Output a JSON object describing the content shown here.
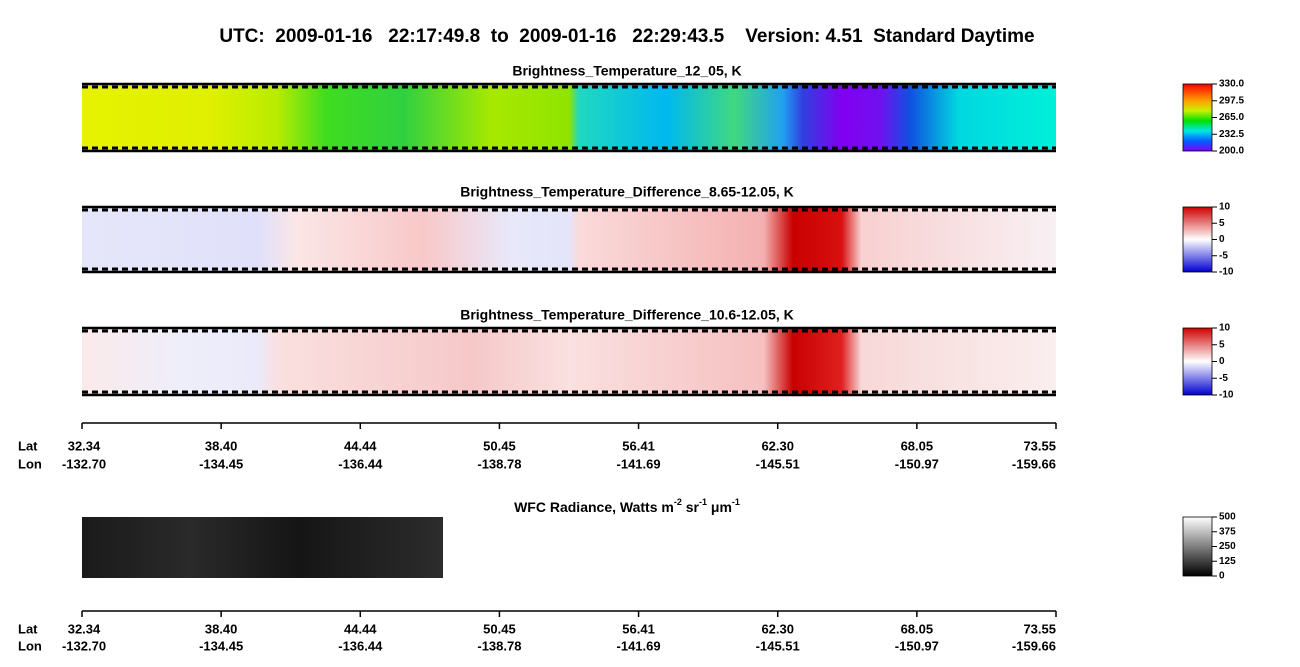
{
  "header": {
    "title": "UTC:  2009-01-16   22:17:49.8  to  2009-01-16   22:29:43.5    Version: 4.51  Standard Daytime"
  },
  "panels": [
    {
      "title": "Brightness_Temperature_12_05, K",
      "colorbar_ticks": [
        "330.0",
        "297.5",
        "265.0",
        "232.5",
        "200.0"
      ]
    },
    {
      "title": "Brightness_Temperature_Difference_8.65-12.05, K",
      "colorbar_ticks": [
        "10",
        "5",
        "0",
        "-5",
        "-10"
      ]
    },
    {
      "title": "Brightness_Temperature_Difference_10.6-12.05, K",
      "colorbar_ticks": [
        "10",
        "5",
        "0",
        "-5",
        "-10"
      ]
    }
  ],
  "axis1": {
    "lat_label": "Lat",
    "lon_label": "Lon",
    "lat": [
      "32.34",
      "38.40",
      "44.44",
      "50.45",
      "56.41",
      "62.30",
      "68.05",
      "73.55"
    ],
    "lon": [
      "-132.70",
      "-134.45",
      "-136.44",
      "-138.78",
      "-141.69",
      "-145.51",
      "-150.97",
      "-159.66"
    ]
  },
  "wfc": {
    "title_parts": [
      "WFC Radiance, Watts m",
      "-2",
      " sr",
      "-1",
      " μm",
      "-1"
    ],
    "colorbar_ticks": [
      "500",
      "375",
      "250",
      "125",
      "0"
    ]
  },
  "axis2": {
    "lat_label": "Lat",
    "lon_label": "Lon",
    "lat": [
      "32.34",
      "38.40",
      "44.44",
      "50.45",
      "56.41",
      "62.30",
      "68.05",
      "73.55"
    ],
    "lon": [
      "-132.70",
      "-134.45",
      "-136.44",
      "-138.78",
      "-141.69",
      "-145.51",
      "-150.97",
      "-159.66"
    ]
  }
}
